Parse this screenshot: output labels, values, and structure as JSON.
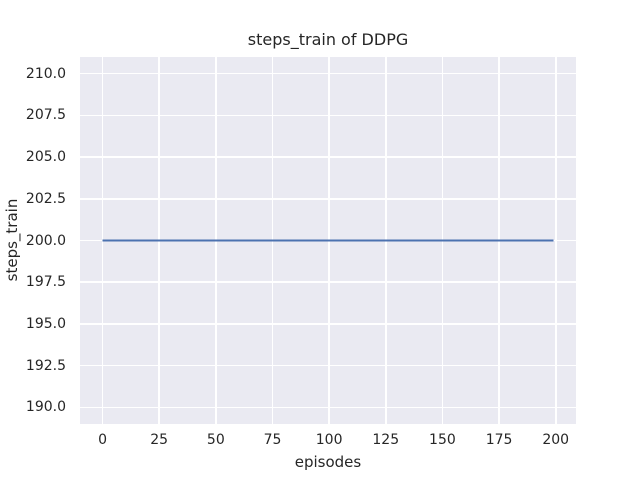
{
  "figure": {
    "title": "steps_train of DDPG",
    "xlabel": "episodes",
    "ylabel": "steps_train",
    "background_color": "#ffffff",
    "plot_background_color": "#eaeaf2",
    "grid_color": "#ffffff",
    "text_color": "#262626"
  },
  "chart_data": {
    "type": "line",
    "title": "steps_train of DDPG",
    "xlabel": "episodes",
    "ylabel": "steps_train",
    "grid": true,
    "legend": null,
    "xlim": [
      -9.95,
      208.95
    ],
    "ylim": [
      189.0,
      211.0
    ],
    "x_ticks": [
      {
        "value": 0,
        "label": "0"
      },
      {
        "value": 25,
        "label": "25"
      },
      {
        "value": 50,
        "label": "50"
      },
      {
        "value": 75,
        "label": "75"
      },
      {
        "value": 100,
        "label": "100"
      },
      {
        "value": 125,
        "label": "125"
      },
      {
        "value": 150,
        "label": "150"
      },
      {
        "value": 175,
        "label": "175"
      },
      {
        "value": 200,
        "label": "200"
      }
    ],
    "y_ticks": [
      {
        "value": 190.0,
        "label": "190.0"
      },
      {
        "value": 192.5,
        "label": "192.5"
      },
      {
        "value": 195.0,
        "label": "195.0"
      },
      {
        "value": 197.5,
        "label": "197.5"
      },
      {
        "value": 200.0,
        "label": "200.0"
      },
      {
        "value": 202.5,
        "label": "202.5"
      },
      {
        "value": 205.0,
        "label": "205.0"
      },
      {
        "value": 207.5,
        "label": "207.5"
      },
      {
        "value": 210.0,
        "label": "210.0"
      }
    ],
    "series": [
      {
        "name": "steps_train",
        "color": "#4c72b0",
        "line_width": 2,
        "x": [
          0,
          199
        ],
        "y": [
          200,
          200
        ]
      }
    ]
  }
}
